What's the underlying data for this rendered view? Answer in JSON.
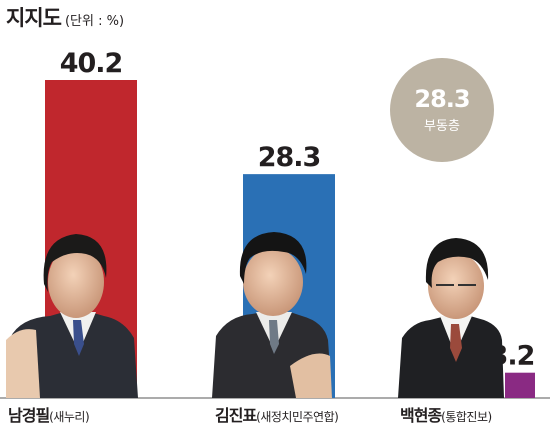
{
  "title": {
    "main": "지지도",
    "unit": "(단위 : %)"
  },
  "chart_data": {
    "type": "bar",
    "categories": [
      "남경필(새누리)",
      "김진표(새정치민주연합)",
      "백현종(통합진보)"
    ],
    "values": [
      40.2,
      28.3,
      3.2
    ],
    "value_labels": [
      "40.2",
      "28.3",
      "3.2"
    ],
    "ylim": [
      0,
      40.2
    ],
    "grid": false,
    "bar_colors": [
      "#c0272d",
      "#2a70b5",
      "#8a2a83"
    ]
  },
  "candidates": [
    {
      "name": "남경필",
      "party": "(새누리)"
    },
    {
      "name": "김진표",
      "party": "(새정치민주연합)"
    },
    {
      "name": "백현종",
      "party": "(통합진보)"
    }
  ],
  "undecided": {
    "value": "28.3",
    "label": "부동층",
    "color": "#bcb3a3"
  }
}
